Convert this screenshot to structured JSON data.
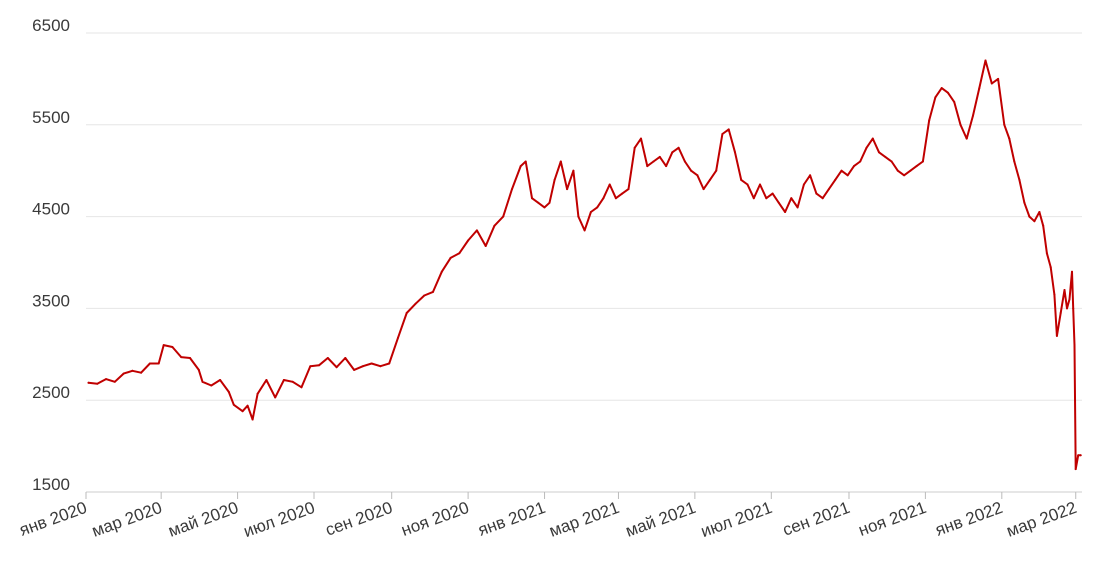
{
  "chart_data": {
    "type": "line",
    "title": "",
    "xlabel": "",
    "ylabel": "",
    "grid": "horizontal",
    "legend": "none",
    "color": "#c00000",
    "ylim": [
      1500,
      6500
    ],
    "yticks": [
      1500,
      2500,
      3500,
      4500,
      5500,
      6500
    ],
    "xlim": [
      "2020-01-01",
      "2022-03-06"
    ],
    "xticks": [
      {
        "date": "2020-01-01",
        "label": "янв 2020"
      },
      {
        "date": "2020-03-01",
        "label": "мар 2020"
      },
      {
        "date": "2020-05-01",
        "label": "май 2020"
      },
      {
        "date": "2020-07-01",
        "label": "июл 2020"
      },
      {
        "date": "2020-09-01",
        "label": "сен 2020"
      },
      {
        "date": "2020-11-01",
        "label": "ноя 2020"
      },
      {
        "date": "2021-01-01",
        "label": "янв 2021"
      },
      {
        "date": "2021-03-01",
        "label": "мар 2021"
      },
      {
        "date": "2021-05-01",
        "label": "май 2021"
      },
      {
        "date": "2021-07-01",
        "label": "июл 2021"
      },
      {
        "date": "2021-09-01",
        "label": "сен 2021"
      },
      {
        "date": "2021-11-01",
        "label": "ноя 2021"
      },
      {
        "date": "2022-01-01",
        "label": "янв 2022"
      },
      {
        "date": "2022-03-01",
        "label": "мар 2022"
      }
    ],
    "series": [
      {
        "points": [
          [
            "2020-01-03",
            2690
          ],
          [
            "2020-01-10",
            2680
          ],
          [
            "2020-01-17",
            2730
          ],
          [
            "2020-01-24",
            2700
          ],
          [
            "2020-01-31",
            2790
          ],
          [
            "2020-02-07",
            2820
          ],
          [
            "2020-02-14",
            2800
          ],
          [
            "2020-02-21",
            2900
          ],
          [
            "2020-02-28",
            2900
          ],
          [
            "2020-03-03",
            3100
          ],
          [
            "2020-03-10",
            3080
          ],
          [
            "2020-03-17",
            2970
          ],
          [
            "2020-03-24",
            2960
          ],
          [
            "2020-03-31",
            2830
          ],
          [
            "2020-04-03",
            2700
          ],
          [
            "2020-04-10",
            2660
          ],
          [
            "2020-04-17",
            2720
          ],
          [
            "2020-04-24",
            2590
          ],
          [
            "2020-04-28",
            2450
          ],
          [
            "2020-05-05",
            2380
          ],
          [
            "2020-05-09",
            2440
          ],
          [
            "2020-05-13",
            2290
          ],
          [
            "2020-05-17",
            2570
          ],
          [
            "2020-05-24",
            2720
          ],
          [
            "2020-05-31",
            2530
          ],
          [
            "2020-06-07",
            2720
          ],
          [
            "2020-06-14",
            2700
          ],
          [
            "2020-06-21",
            2640
          ],
          [
            "2020-06-28",
            2870
          ],
          [
            "2020-07-05",
            2880
          ],
          [
            "2020-07-12",
            2960
          ],
          [
            "2020-07-19",
            2860
          ],
          [
            "2020-07-26",
            2960
          ],
          [
            "2020-08-02",
            2830
          ],
          [
            "2020-08-09",
            2870
          ],
          [
            "2020-08-16",
            2900
          ],
          [
            "2020-08-23",
            2870
          ],
          [
            "2020-08-30",
            2900
          ],
          [
            "2020-09-06",
            3180
          ],
          [
            "2020-09-13",
            3450
          ],
          [
            "2020-09-20",
            3550
          ],
          [
            "2020-09-27",
            3640
          ],
          [
            "2020-10-04",
            3680
          ],
          [
            "2020-10-11",
            3900
          ],
          [
            "2020-10-18",
            4050
          ],
          [
            "2020-10-25",
            4100
          ],
          [
            "2020-11-01",
            4240
          ],
          [
            "2020-11-08",
            4350
          ],
          [
            "2020-11-15",
            4180
          ],
          [
            "2020-11-22",
            4400
          ],
          [
            "2020-11-29",
            4500
          ],
          [
            "2020-12-06",
            4800
          ],
          [
            "2020-12-13",
            5050
          ],
          [
            "2020-12-17",
            5100
          ],
          [
            "2020-12-22",
            4700
          ],
          [
            "2020-12-27",
            4650
          ],
          [
            "2021-01-01",
            4600
          ],
          [
            "2021-01-05",
            4650
          ],
          [
            "2021-01-09",
            4900
          ],
          [
            "2021-01-14",
            5100
          ],
          [
            "2021-01-19",
            4800
          ],
          [
            "2021-01-24",
            5000
          ],
          [
            "2021-01-28",
            4500
          ],
          [
            "2021-02-02",
            4350
          ],
          [
            "2021-02-07",
            4550
          ],
          [
            "2021-02-12",
            4600
          ],
          [
            "2021-02-17",
            4700
          ],
          [
            "2021-02-22",
            4850
          ],
          [
            "2021-02-27",
            4700
          ],
          [
            "2021-03-04",
            4750
          ],
          [
            "2021-03-09",
            4800
          ],
          [
            "2021-03-14",
            5250
          ],
          [
            "2021-03-19",
            5350
          ],
          [
            "2021-03-24",
            5050
          ],
          [
            "2021-03-29",
            5100
          ],
          [
            "2021-04-03",
            5150
          ],
          [
            "2021-04-08",
            5050
          ],
          [
            "2021-04-13",
            5200
          ],
          [
            "2021-04-18",
            5250
          ],
          [
            "2021-04-23",
            5100
          ],
          [
            "2021-04-28",
            5000
          ],
          [
            "2021-05-03",
            4950
          ],
          [
            "2021-05-08",
            4800
          ],
          [
            "2021-05-13",
            4900
          ],
          [
            "2021-05-18",
            5000
          ],
          [
            "2021-05-23",
            5400
          ],
          [
            "2021-05-28",
            5450
          ],
          [
            "2021-06-02",
            5200
          ],
          [
            "2021-06-07",
            4900
          ],
          [
            "2021-06-12",
            4850
          ],
          [
            "2021-06-17",
            4700
          ],
          [
            "2021-06-22",
            4850
          ],
          [
            "2021-06-27",
            4700
          ],
          [
            "2021-07-02",
            4750
          ],
          [
            "2021-07-07",
            4650
          ],
          [
            "2021-07-12",
            4550
          ],
          [
            "2021-07-17",
            4700
          ],
          [
            "2021-07-22",
            4600
          ],
          [
            "2021-07-27",
            4850
          ],
          [
            "2021-08-01",
            4950
          ],
          [
            "2021-08-06",
            4750
          ],
          [
            "2021-08-11",
            4700
          ],
          [
            "2021-08-16",
            4800
          ],
          [
            "2021-08-21",
            4900
          ],
          [
            "2021-08-26",
            5000
          ],
          [
            "2021-08-31",
            4950
          ],
          [
            "2021-09-05",
            5050
          ],
          [
            "2021-09-10",
            5100
          ],
          [
            "2021-09-15",
            5250
          ],
          [
            "2021-09-20",
            5350
          ],
          [
            "2021-09-25",
            5200
          ],
          [
            "2021-09-30",
            5150
          ],
          [
            "2021-10-05",
            5100
          ],
          [
            "2021-10-10",
            5000
          ],
          [
            "2021-10-15",
            4950
          ],
          [
            "2021-10-20",
            5000
          ],
          [
            "2021-10-25",
            5050
          ],
          [
            "2021-10-30",
            5100
          ],
          [
            "2021-11-04",
            5550
          ],
          [
            "2021-11-09",
            5800
          ],
          [
            "2021-11-14",
            5900
          ],
          [
            "2021-11-19",
            5850
          ],
          [
            "2021-11-24",
            5750
          ],
          [
            "2021-11-29",
            5500
          ],
          [
            "2021-12-04",
            5350
          ],
          [
            "2021-12-09",
            5600
          ],
          [
            "2021-12-14",
            5900
          ],
          [
            "2021-12-19",
            6200
          ],
          [
            "2021-12-24",
            5950
          ],
          [
            "2021-12-29",
            6000
          ],
          [
            "2022-01-03",
            5500
          ],
          [
            "2022-01-07",
            5350
          ],
          [
            "2022-01-11",
            5100
          ],
          [
            "2022-01-15",
            4900
          ],
          [
            "2022-01-19",
            4650
          ],
          [
            "2022-01-23",
            4500
          ],
          [
            "2022-01-27",
            4450
          ],
          [
            "2022-01-31",
            4550
          ],
          [
            "2022-02-03",
            4400
          ],
          [
            "2022-02-06",
            4100
          ],
          [
            "2022-02-09",
            3950
          ],
          [
            "2022-02-12",
            3650
          ],
          [
            "2022-02-14",
            3200
          ],
          [
            "2022-02-17",
            3450
          ],
          [
            "2022-02-20",
            3700
          ],
          [
            "2022-02-22",
            3500
          ],
          [
            "2022-02-24",
            3600
          ],
          [
            "2022-02-26",
            3900
          ],
          [
            "2022-02-27",
            3500
          ],
          [
            "2022-02-28",
            3100
          ],
          [
            "2022-03-01",
            1750
          ],
          [
            "2022-03-03",
            1900
          ],
          [
            "2022-03-05",
            1900
          ]
        ]
      }
    ]
  }
}
